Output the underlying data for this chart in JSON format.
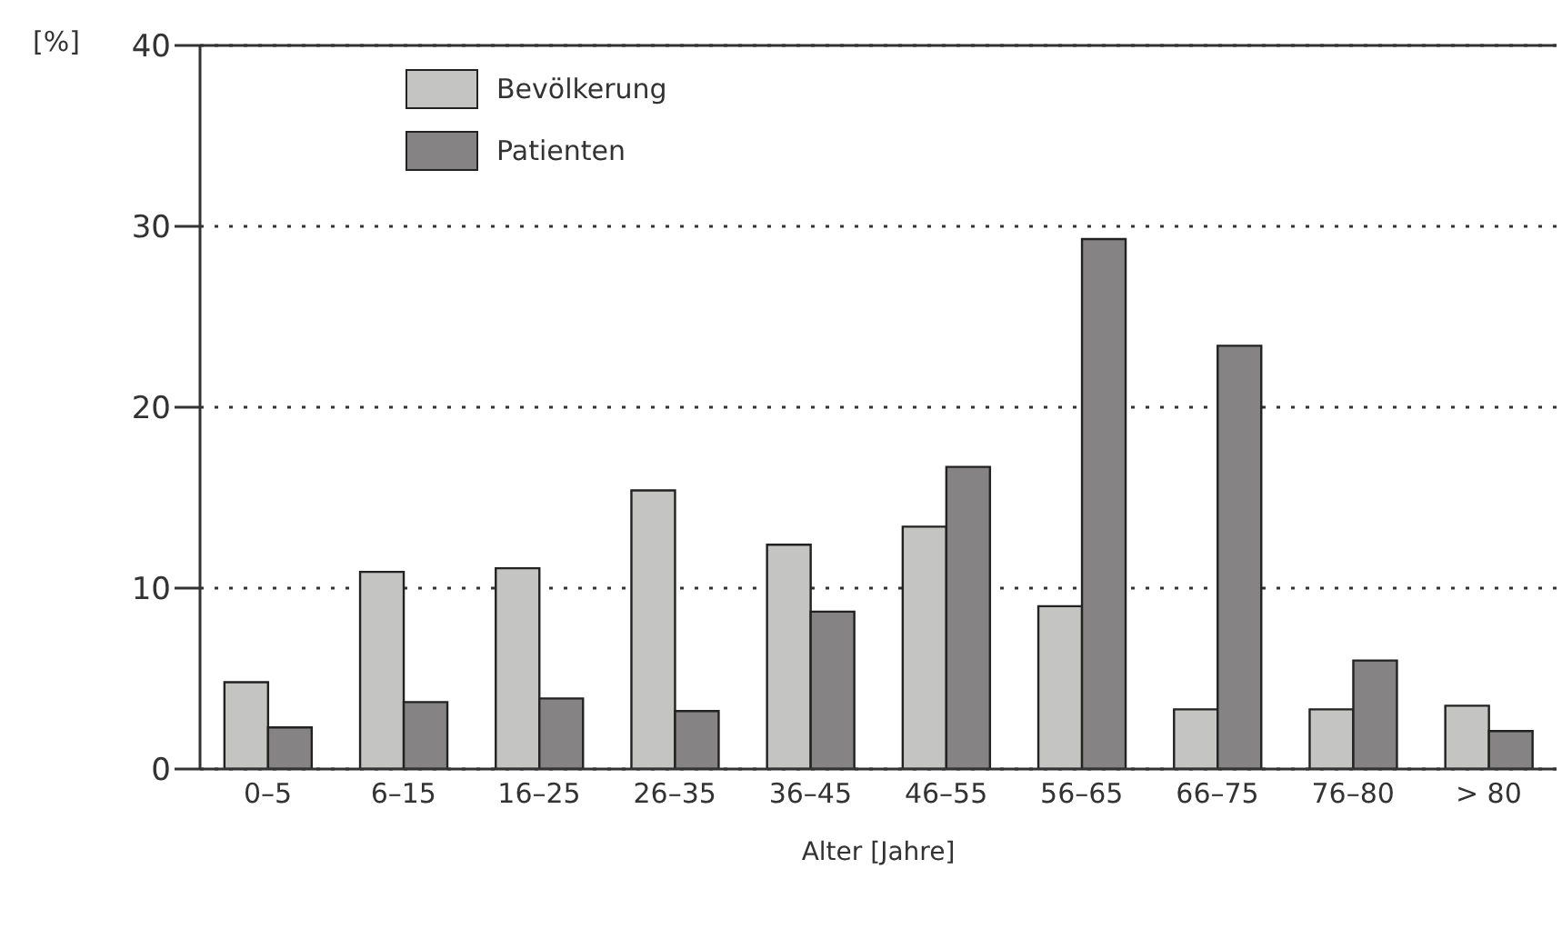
{
  "chart_data": {
    "type": "bar",
    "xlabel": "Alter [Jahre]",
    "ylabel": "[%]",
    "categories": [
      "0–5",
      "6–15",
      "16–25",
      "26–35",
      "36–45",
      "46–55",
      "56–65",
      "66–75",
      "76–80",
      "> 80"
    ],
    "series": [
      {
        "name": "Bevölkerung",
        "color": "#c4c4c2",
        "values": [
          4.8,
          10.9,
          11.1,
          15.4,
          12.4,
          13.4,
          9.0,
          3.3,
          3.3,
          3.5
        ]
      },
      {
        "name": "Patienten",
        "color": "#858383",
        "values": [
          2.3,
          3.7,
          3.9,
          3.2,
          8.7,
          16.7,
          29.3,
          23.4,
          6.0,
          2.1
        ]
      }
    ],
    "ylim": [
      0,
      40
    ],
    "yticks": [
      0,
      10,
      20,
      30,
      40
    ],
    "grid": "y",
    "legend": "top left"
  }
}
